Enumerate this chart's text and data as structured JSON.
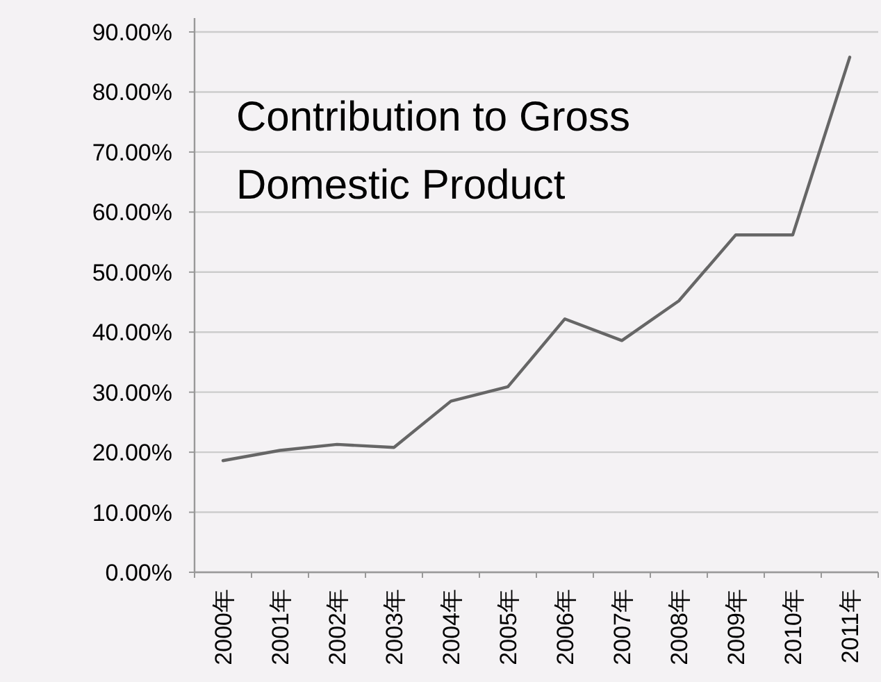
{
  "chart_data": {
    "type": "line",
    "title": "Contribution to Gross Domestic Product",
    "categories": [
      "2000年",
      "2001年",
      "2002年",
      "2003年",
      "2004年",
      "2005年",
      "2006年",
      "2007年",
      "2008年",
      "2009年",
      "2010年",
      "2011年"
    ],
    "values": [
      18.6,
      20.3,
      21.3,
      20.8,
      28.5,
      30.9,
      42.2,
      38.6,
      45.2,
      56.2,
      56.2,
      85.8
    ],
    "color": "#666666",
    "ylim": [
      0,
      90
    ],
    "yticks": [
      {
        "value": 0,
        "label": "0.00%"
      },
      {
        "value": 10,
        "label": "10.00%"
      },
      {
        "value": 20,
        "label": "20.00%"
      },
      {
        "value": 30,
        "label": "30.00%"
      },
      {
        "value": 40,
        "label": "40.00%"
      },
      {
        "value": 50,
        "label": "50.00%"
      },
      {
        "value": 60,
        "label": "60.00%"
      },
      {
        "value": 70,
        "label": "70.00%"
      },
      {
        "value": 80,
        "label": "80.00%"
      },
      {
        "value": 90,
        "label": "90.00%"
      }
    ],
    "grid": "y"
  }
}
